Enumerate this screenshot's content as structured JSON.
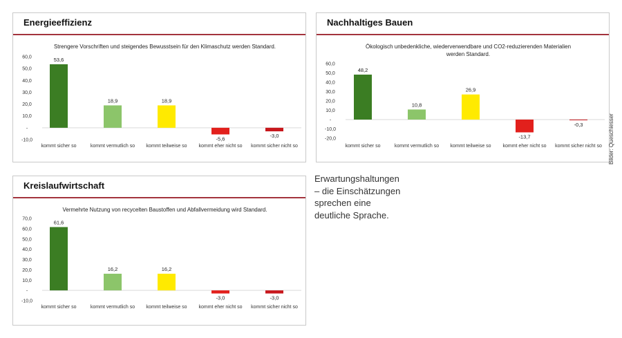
{
  "colors": {
    "accent_rule": "#a3333d",
    "bars": [
      "#3b7d23",
      "#8cc56a",
      "#ffea00",
      "#e2201c",
      "#c8181d"
    ]
  },
  "chart_data": [
    {
      "type": "bar",
      "title": "Energieeffizienz",
      "subtitle": "Strengere Vorschriften und steigendes Bewusstsein für den Klimaschutz werden Standard.",
      "categories": [
        "kommt sicher so",
        "kommt vermutlich so",
        "kommt teilweise so",
        "kommt eher nicht so",
        "kommt sicher nicht so"
      ],
      "values": [
        53.6,
        18.9,
        18.9,
        -5.6,
        -3.0
      ],
      "value_labels": [
        "53,6",
        "18,9",
        "18,9",
        "-5,6",
        "-3,0"
      ],
      "yticks": [
        "60,0",
        "50,0",
        "40,0",
        "30,0",
        "20,0",
        "10,0",
        "-",
        "-10,0"
      ],
      "ylim": [
        -10,
        60
      ],
      "legend": "none"
    },
    {
      "type": "bar",
      "title": "Nachhaltiges Bauen",
      "subtitle": "Ökologisch unbedenkliche, wiederverwendbare und CO2-reduzierenden Materialien werden Standard.",
      "categories": [
        "kommt sicher so",
        "kommt vermutlich so",
        "kommt teilweise so",
        "kommt eher nicht so",
        "kommt sicher nicht so"
      ],
      "values": [
        48.2,
        10.8,
        26.9,
        -13.7,
        -0.3
      ],
      "value_labels": [
        "48,2",
        "10,8",
        "26,9",
        "-13,7",
        "-0,3"
      ],
      "yticks": [
        "60,0",
        "50,0",
        "40,0",
        "30,0",
        "20,0",
        "10,0",
        "-",
        "-10,0",
        "-20,0"
      ],
      "ylim": [
        -20,
        60
      ],
      "legend": "none"
    },
    {
      "type": "bar",
      "title": "Kreislaufwirtschaft",
      "subtitle": "Vermehrte Nutzung von recycelten Baustoffen und Abfallvermeidung wird Standard.",
      "categories": [
        "kommt sicher so",
        "kommt vermutlich so",
        "kommt teilweise so",
        "kommt eher nicht so",
        "kommt sicher nicht so"
      ],
      "values": [
        61.6,
        16.2,
        16.2,
        -3.0,
        -3.0
      ],
      "value_labels": [
        "61,6",
        "16,2",
        "16,2",
        "-3,0",
        "-3,0"
      ],
      "yticks": [
        "70,0",
        "60,0",
        "50,0",
        "40,0",
        "30,0",
        "20,0",
        "10,0",
        "-",
        "-10,0"
      ],
      "ylim": [
        -10,
        70
      ],
      "legend": "none"
    }
  ],
  "caption": {
    "lines": [
      "Erwartungshaltungen",
      "– die Einschätzungen",
      "sprechen eine",
      "deutliche Sprache."
    ]
  },
  "credit": "Bilder: Queschiesser"
}
